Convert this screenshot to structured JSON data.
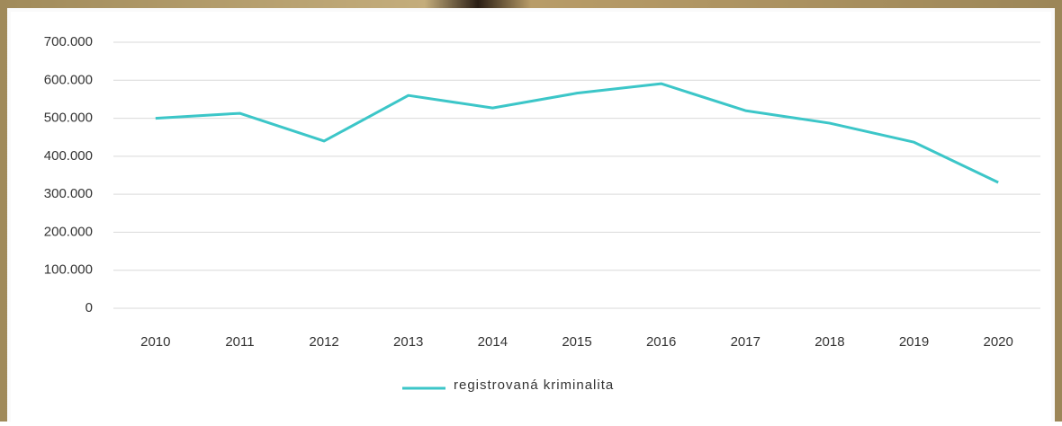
{
  "chart_data": {
    "type": "line",
    "categories": [
      "2010",
      "2011",
      "2012",
      "2013",
      "2014",
      "2015",
      "2016",
      "2017",
      "2018",
      "2019",
      "2020"
    ],
    "series": [
      {
        "name": "registrovaná kriminalita",
        "color": "#3cc6c8",
        "values": [
          500000,
          513000,
          440000,
          560000,
          527000,
          566000,
          591000,
          520000,
          487000,
          437000,
          331000
        ]
      }
    ],
    "ylim": [
      0,
      700000
    ],
    "yticks": [
      0,
      {
        "value": 100000,
        "label": "100.000"
      },
      {
        "value": 200000,
        "label": "200.000"
      },
      {
        "value": 300000,
        "label": "300.000"
      },
      {
        "value": 400000,
        "label": "400.000"
      },
      {
        "value": 500000,
        "label": "500.000"
      },
      {
        "value": 600000,
        "label": "600.000"
      },
      {
        "value": 700000,
        "label": "700.000"
      }
    ],
    "grid": true,
    "legend": "bottom"
  }
}
